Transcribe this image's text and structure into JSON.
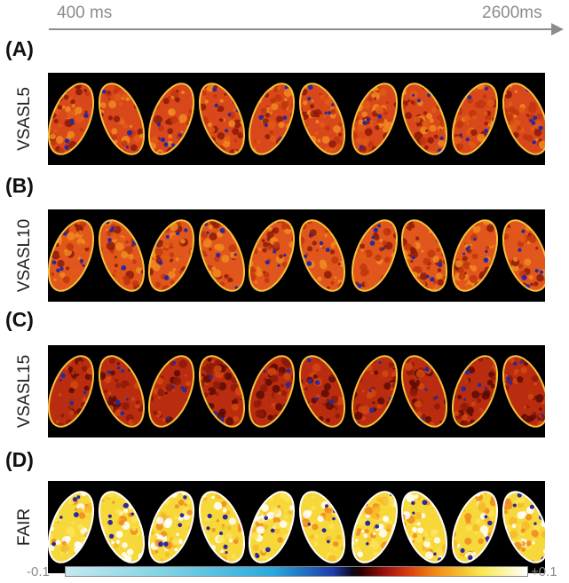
{
  "timeline": {
    "start_label": "400 ms",
    "end_label": "2600ms",
    "arrow_color": "#8c8c8c"
  },
  "rows": [
    {
      "panel": "(A)",
      "label": "VSASL5",
      "intensity": "medium",
      "tint": "#d9481b"
    },
    {
      "panel": "(B)",
      "label": "VSASL10",
      "intensity": "medium",
      "tint": "#e0561d"
    },
    {
      "panel": "(C)",
      "label": "VSASL15",
      "intensity": "low",
      "tint": "#b92c0f"
    },
    {
      "panel": "(D)",
      "label": "FAIR",
      "intensity": "high",
      "tint": "#f6d83a"
    }
  ],
  "colorbar": {
    "min_label": "-0.1",
    "max_label": "+0.1",
    "colormap": "cyan-blue-black-red-yellow-white"
  }
}
